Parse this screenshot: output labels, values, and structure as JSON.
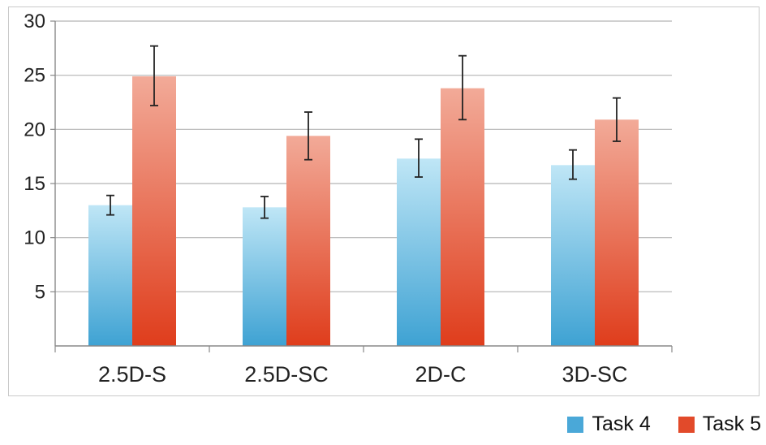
{
  "chart_data": {
    "type": "bar",
    "categories": [
      "2.5D-S",
      "2.5D-SC",
      "2D-C",
      "3D-SC"
    ],
    "series": [
      {
        "name": "Task 4",
        "values": [
          13.0,
          12.8,
          17.3,
          16.7
        ],
        "error_low": [
          12.1,
          11.8,
          15.6,
          15.4
        ],
        "error_high": [
          13.9,
          13.8,
          19.1,
          18.1
        ],
        "color": "#4aa8d8"
      },
      {
        "name": "Task 5",
        "values": [
          24.9,
          19.4,
          23.8,
          20.9
        ],
        "error_low": [
          22.2,
          17.2,
          20.9,
          18.9
        ],
        "error_high": [
          27.7,
          21.6,
          26.8,
          22.9
        ],
        "color": "#e24a2a"
      }
    ],
    "ylim": [
      0,
      30
    ],
    "yticks": [
      5,
      10,
      15,
      20,
      25,
      30
    ],
    "ytick_labels": [
      "5",
      "10",
      "15",
      "20",
      "25",
      "30"
    ],
    "grid": true,
    "legend_position": "bottom-right",
    "title": "",
    "xlabel": "",
    "ylabel": ""
  }
}
